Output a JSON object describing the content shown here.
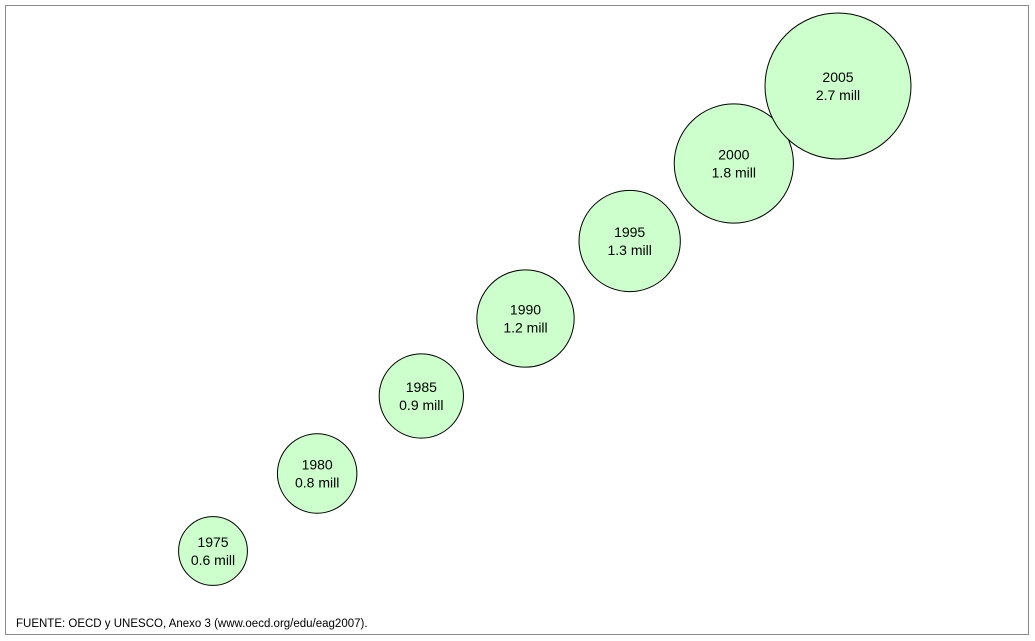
{
  "chart_data": {
    "type": "bubble",
    "title": "",
    "xlabel": "",
    "ylabel": "",
    "grid": false,
    "legend": "none",
    "bubble_fill": "#ccffcc",
    "bubble_stroke": "#000000",
    "points": [
      {
        "year": "1975",
        "value": 0.6,
        "label": "0.6 mill"
      },
      {
        "year": "1980",
        "value": 0.8,
        "label": "0.8 mill"
      },
      {
        "year": "1985",
        "value": 0.9,
        "label": "0.9 mill"
      },
      {
        "year": "1990",
        "value": 1.2,
        "label": "1.2 mill"
      },
      {
        "year": "1995",
        "value": 1.3,
        "label": "1.3 mill"
      },
      {
        "year": "2000",
        "value": 1.8,
        "label": "1.8 mill"
      },
      {
        "year": "2005",
        "value": 2.7,
        "label": "2.7 mill"
      }
    ]
  },
  "source_note": "FUENTE: OECD y UNESCO, Anexo 3 (www.oecd.org/edu/eag2007)."
}
